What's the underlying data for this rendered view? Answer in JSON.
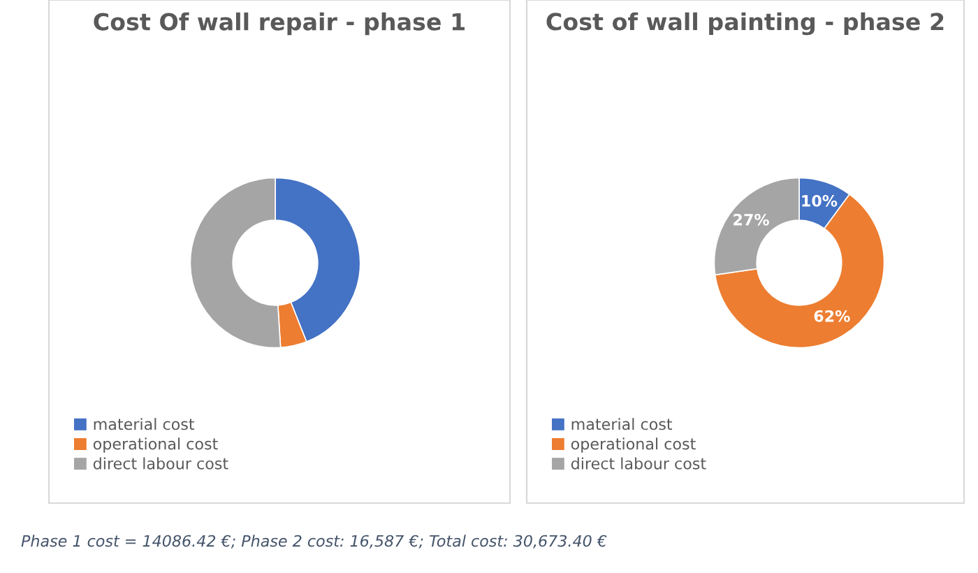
{
  "chart_data": [
    {
      "type": "donut",
      "title": "Cost Of wall repair - phase 1",
      "categories": [
        "material cost",
        "operational cost",
        "direct labour cost"
      ],
      "values": [
        44,
        5,
        51
      ],
      "colors": [
        "#4472c4",
        "#ed7d31",
        "#a5a5a5"
      ],
      "legend": "bottom left",
      "annotations": [
        "Phase 1 cost = 14086.42 €; Phase 2 cost: 16,587 €; Total cost: 30,673.40 €"
      ]
    },
    {
      "type": "donut",
      "title": "Cost of wall painting - phase 2",
      "categories": [
        "material cost",
        "operational cost",
        "direct labour cost"
      ],
      "values": [
        10,
        62,
        27
      ],
      "colors": [
        "#4472c4",
        "#ed7d31",
        "#a5a5a5"
      ],
      "value_labels": [
        "10%",
        "62%",
        "27%"
      ],
      "legend": "bottom left"
    }
  ]
}
